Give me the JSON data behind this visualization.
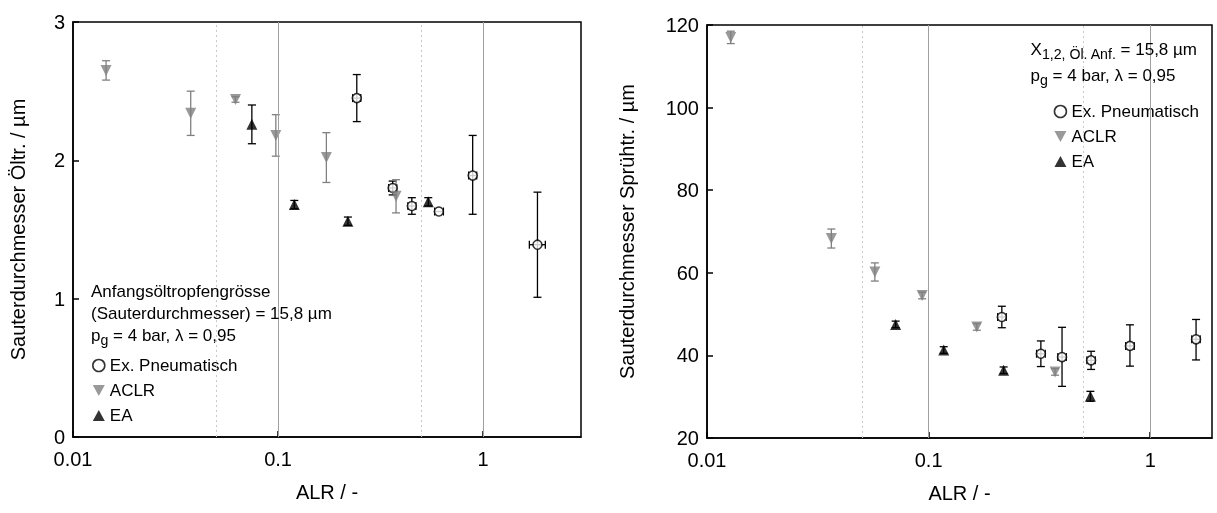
{
  "chart_data": [
    {
      "type": "scatter",
      "xlabel": "ALR / -",
      "ylabel": "Sauterdurchmesser Öltr. / µm",
      "log": "x",
      "xlim": [
        0.01,
        3
      ],
      "xticks": [
        0.01,
        0.1,
        1
      ],
      "ylim": [
        0,
        3
      ],
      "yticks": [
        0,
        1,
        2,
        3
      ],
      "grid": false,
      "legend": "bottom left",
      "annotations": [
        "Anfangsöltropfengrösse",
        "(Sauterdurchmesser) = 15,8 µm",
        "p$_{g}$ = 4 bar, λ = 0,95"
      ],
      "ref_lines": [
        {
          "axis": "x",
          "value": 0.05,
          "label": null,
          "color": "#c8c8c8",
          "line_style": "dotted"
        },
        {
          "axis": "x",
          "value": 0.1,
          "label": null,
          "color": "#a0a0a0",
          "line_style": "solid"
        },
        {
          "axis": "x",
          "value": 0.5,
          "label": null,
          "color": "#c8c8c8",
          "line_style": "dotted"
        },
        {
          "axis": "x",
          "value": 1,
          "label": null,
          "color": "#a0a0a0",
          "line_style": "solid"
        }
      ],
      "series": [
        {
          "name": "Ex. Pneumatisch",
          "color": "#000000",
          "marker": "circle-open",
          "x": [
            0.242,
            0.362,
            0.449,
            0.608,
            0.889,
            1.84
          ],
          "values": [
            2.45,
            1.8,
            1.67,
            1.63,
            1.89,
            1.39
          ],
          "errors": [
            0.17,
            0.05,
            0.06,
            null,
            [
              1.61,
              2.18
            ],
            [
              1.01,
              1.77
            ]
          ],
          "xerrors": [
            [
              0.231,
              0.253
            ],
            [
              0.346,
              0.379
            ],
            [
              0.43,
              0.47
            ],
            [
              0.58,
              0.64
            ],
            [
              0.85,
              0.93
            ],
            [
              1.68,
              2.01
            ]
          ]
        },
        {
          "name": "ACLR",
          "color": "#808080",
          "marker": "triangle-down",
          "x": [
            0.0145,
            0.0375,
            0.062,
            0.0975,
            0.172,
            0.376
          ],
          "values": [
            2.65,
            2.34,
            2.44,
            2.18,
            2.02,
            1.74
          ],
          "errors": [
            0.07,
            0.16,
            0.02,
            0.15,
            0.18,
            0.12
          ]
        },
        {
          "name": "EA",
          "color": "#000000",
          "marker": "triangle",
          "x": [
            0.0745,
            0.12,
            0.219,
            0.54
          ],
          "values": [
            2.26,
            1.68,
            1.56,
            1.7
          ],
          "errors": [
            0.14,
            0.03,
            0.03,
            0.03
          ]
        }
      ]
    },
    {
      "type": "scatter",
      "xlabel": "ALR / -",
      "ylabel": "Sauterdurchmesser Sprühtr. / µm",
      "log": "x",
      "xlim": [
        0.01,
        1.9
      ],
      "xticks": [
        0.01,
        0.1,
        1
      ],
      "ylim": [
        20,
        120
      ],
      "yticks": [
        20,
        40,
        60,
        80,
        100,
        120
      ],
      "grid": false,
      "legend": "top right",
      "annotations": [
        "X$_{1,2, Öl. Anf.}$ = 15,8 µm",
        "p$_{g}$ = 4 bar, λ = 0,95"
      ],
      "ref_lines": [
        {
          "axis": "x",
          "value": 0.05,
          "label": null,
          "color": "#c8c8c8",
          "line_style": "dotted"
        },
        {
          "axis": "x",
          "value": 0.1,
          "label": null,
          "color": "#a0a0a0",
          "line_style": "solid"
        },
        {
          "axis": "x",
          "value": 0.5,
          "label": null,
          "color": "#c8c8c8",
          "line_style": "dotted"
        },
        {
          "axis": "x",
          "value": 1,
          "label": null,
          "color": "#a0a0a0",
          "line_style": "solid"
        }
      ],
      "series": [
        {
          "name": "Ex. Pneumatisch",
          "color": "#000000",
          "marker": "circle-open",
          "x": [
            0.214,
            0.321,
            0.4,
            0.541,
            0.81,
            1.61
          ],
          "values": [
            49.3,
            40.4,
            39.6,
            38.8,
            42.3,
            43.9
          ],
          "errors": [
            2.6,
            3.1,
            [
              32.5,
              46.8
            ],
            [
              36.6,
              41
            ],
            [
              37.4,
              47.4
            ],
            [
              38.9,
              48.7
            ]
          ],
          "xerrors": [
            [
              0.205,
              0.224
            ],
            [
              0.307,
              0.336
            ],
            [
              0.383,
              0.418
            ],
            [
              0.518,
              0.565
            ],
            [
              0.775,
              0.847
            ],
            [
              1.54,
              1.68
            ]
          ]
        },
        {
          "name": "ACLR",
          "color": "#808080",
          "marker": "triangle-down",
          "x": [
            0.0128,
            0.0364,
            0.0572,
            0.0935,
            0.165,
            0.372
          ],
          "values": [
            117,
            68.3,
            60.2,
            54.5,
            46.9,
            36
          ],
          "errors": [
            1.5,
            2.3,
            2.2,
            0.8,
            0.8,
            0.8
          ]
        },
        {
          "name": "EA",
          "color": "#000000",
          "marker": "triangle",
          "x": [
            0.071,
            0.117,
            0.218,
            0.537
          ],
          "values": [
            47.5,
            41.3,
            36.4,
            30.1
          ],
          "errors": [
            0.8,
            0.8,
            0.8,
            1.2
          ]
        }
      ]
    }
  ]
}
